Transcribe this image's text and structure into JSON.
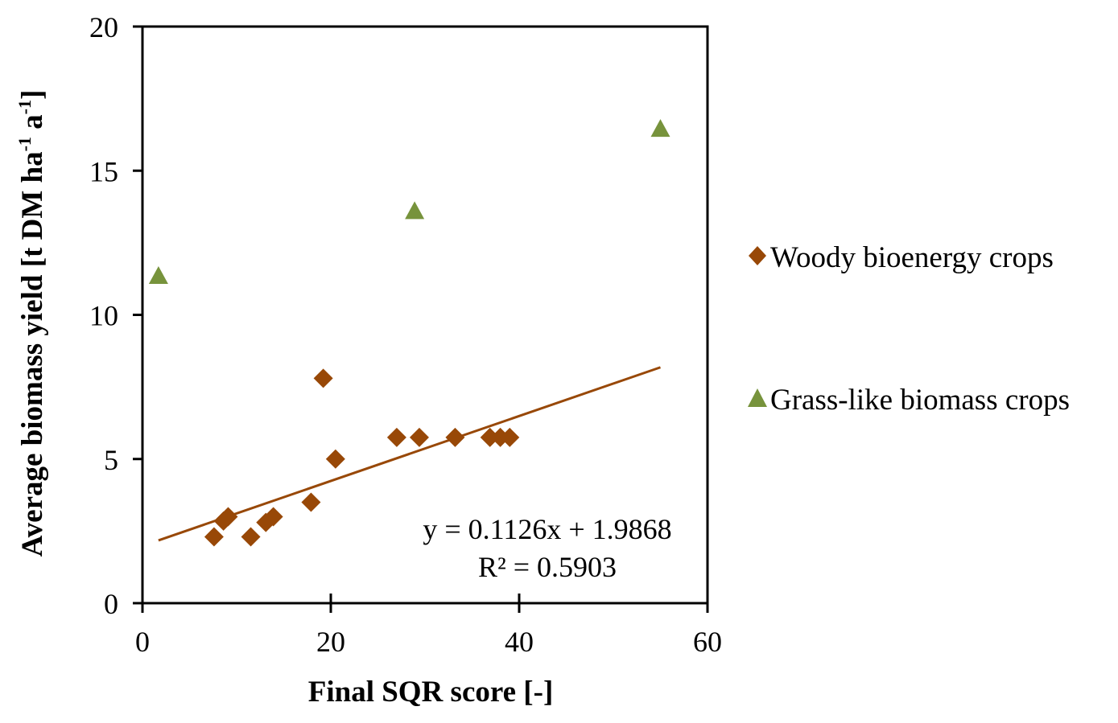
{
  "chart_data": {
    "type": "scatter",
    "xlabel": "Final SQR score [-]",
    "ylabel": {
      "main": "Average biomass yield  [t  DM  ha",
      "sup1": "-1",
      "mid": " a",
      "sup2": "-1",
      "end": "]"
    },
    "xlim": [
      0,
      60
    ],
    "ylim": [
      0,
      20
    ],
    "x_ticks": [
      "0",
      "20",
      "40",
      "60"
    ],
    "x_tick_values": [
      0,
      20,
      40,
      60
    ],
    "y_ticks": [
      "0",
      "5",
      "10",
      "15",
      "20"
    ],
    "y_tick_values": [
      0,
      5,
      10,
      15,
      20
    ],
    "grid": false,
    "legend_position": "right",
    "series": [
      {
        "name": "Woody bioenergy crops",
        "marker": "diamond",
        "color": "#984807",
        "points": [
          [
            7.6,
            2.3
          ],
          [
            8.6,
            2.85
          ],
          [
            9.1,
            3.0
          ],
          [
            11.5,
            2.3
          ],
          [
            13.1,
            2.8
          ],
          [
            13.9,
            3.0
          ],
          [
            17.9,
            3.5
          ],
          [
            19.2,
            7.8
          ],
          [
            20.5,
            5.0
          ],
          [
            27.0,
            5.75
          ],
          [
            29.4,
            5.75
          ],
          [
            33.2,
            5.75
          ],
          [
            36.9,
            5.75
          ],
          [
            38.0,
            5.75
          ],
          [
            39.0,
            5.75
          ]
        ]
      },
      {
        "name": "Grass-like biomass crops",
        "marker": "triangle",
        "color": "#77933C",
        "points": [
          [
            1.7,
            11.35
          ],
          [
            28.9,
            13.6
          ],
          [
            55.0,
            16.45
          ]
        ]
      }
    ],
    "trendline": {
      "series": "Woody bioenergy crops",
      "slope": 0.1126,
      "intercept": 1.9868,
      "x_range": [
        1.7,
        55.0
      ],
      "color": "#984807",
      "equation": "y = 0.1126x + 1.9868",
      "r_squared": "R² = 0.5903"
    }
  }
}
